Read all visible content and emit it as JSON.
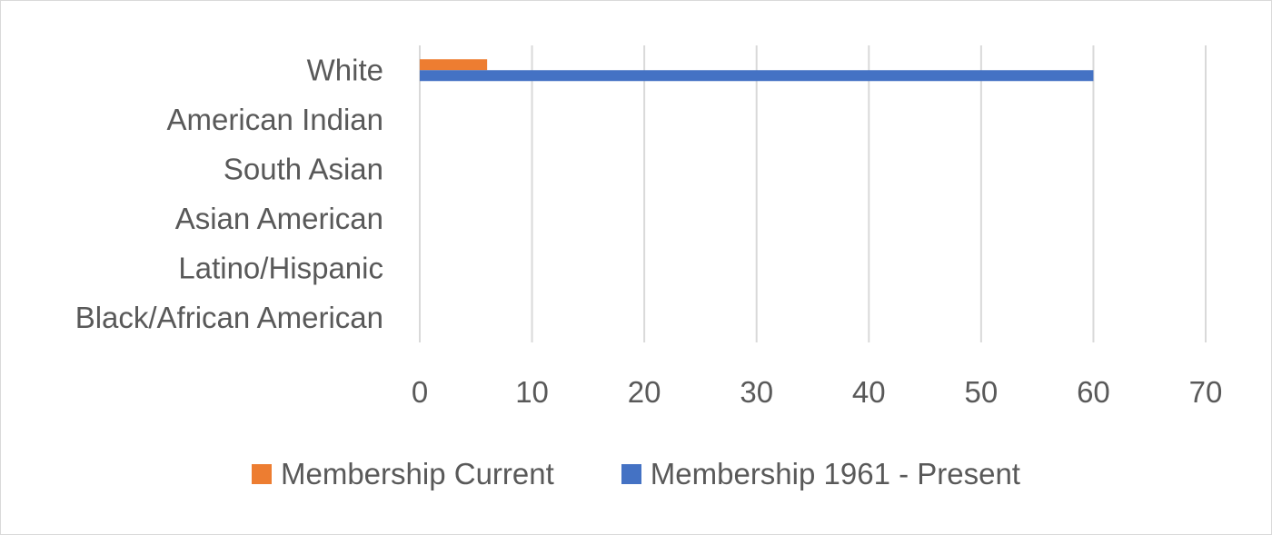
{
  "chart_data": {
    "type": "bar",
    "orientation": "horizontal",
    "categories": [
      "White",
      "American Indian",
      "South Asian",
      "Asian American",
      "Latino/Hispanic",
      "Black/African American"
    ],
    "series": [
      {
        "name": "Membership Current",
        "color": "#ed7d31",
        "values": [
          6,
          0,
          0,
          0,
          0,
          0
        ]
      },
      {
        "name": "Membership 1961 - Present",
        "color": "#4472c4",
        "values": [
          60,
          0,
          0,
          0,
          0,
          0
        ]
      }
    ],
    "xlim": [
      0,
      70
    ],
    "x_ticks": [
      "0",
      "10",
      "20",
      "30",
      "40",
      "50",
      "60",
      "70"
    ],
    "grid": "vertical",
    "legend_position": "bottom",
    "title": "",
    "xlabel": "",
    "ylabel": ""
  }
}
